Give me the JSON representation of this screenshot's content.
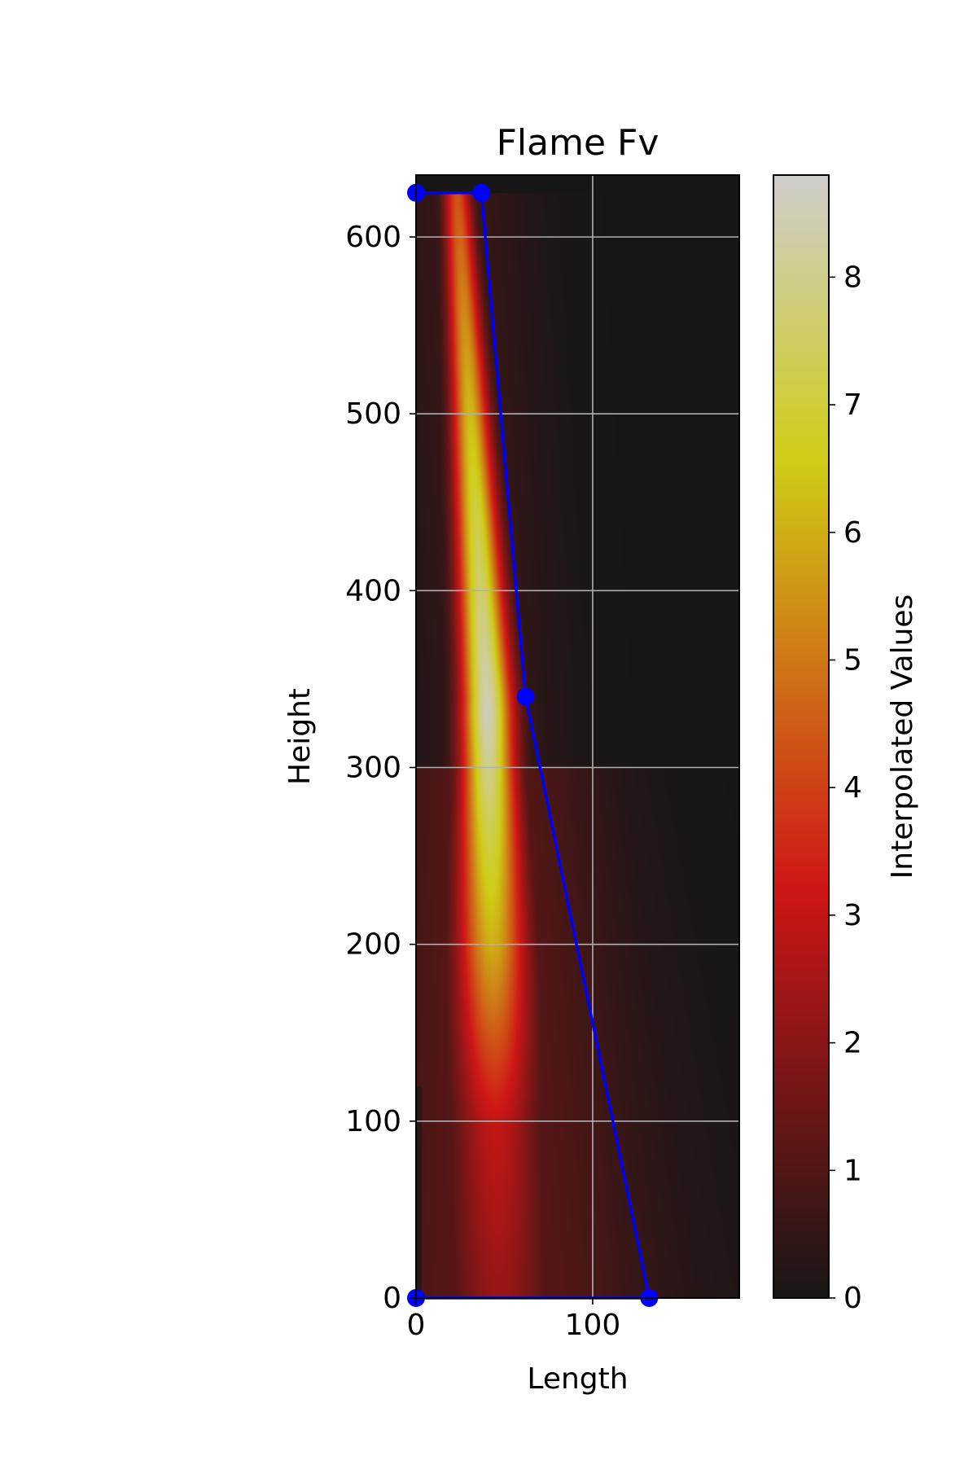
{
  "chart_data": {
    "type": "heatmap",
    "title": "Flame Fv",
    "xlabel": "Length",
    "ylabel": "Height",
    "xlim": [
      0,
      183
    ],
    "ylim": [
      0,
      635
    ],
    "x_ticks": [
      "0",
      "100"
    ],
    "y_ticks": [
      "0",
      "100",
      "200",
      "300",
      "400",
      "500",
      "600"
    ],
    "grid": true,
    "colormap": "hot (alpha blended over grey)",
    "colorbar": {
      "label": "Interpolated Values",
      "range": [
        0,
        8.8
      ],
      "ticks": [
        "0",
        "1",
        "2",
        "3",
        "4",
        "5",
        "6",
        "7",
        "8"
      ]
    },
    "heatmap_ridge": {
      "center_x": [
        [
          0,
          47
        ],
        [
          340,
          40
        ],
        [
          625,
          23
        ]
      ],
      "peak_value": [
        [
          0,
          2.2
        ],
        [
          100,
          3.0
        ],
        [
          200,
          6.0
        ],
        [
          330,
          8.6
        ],
        [
          450,
          7.0
        ],
        [
          625,
          4.3
        ]
      ],
      "half_width": [
        [
          0,
          30
        ],
        [
          300,
          15
        ],
        [
          625,
          8
        ]
      ]
    },
    "polygon": {
      "color": "#0000ff",
      "points": [
        [
          0,
          625
        ],
        [
          37,
          625
        ],
        [
          62,
          340
        ],
        [
          132,
          0
        ],
        [
          0,
          0
        ]
      ]
    }
  },
  "colors": {
    "background": "#524d4d",
    "grid": "#b0b0b0",
    "line": "#0000ff"
  }
}
